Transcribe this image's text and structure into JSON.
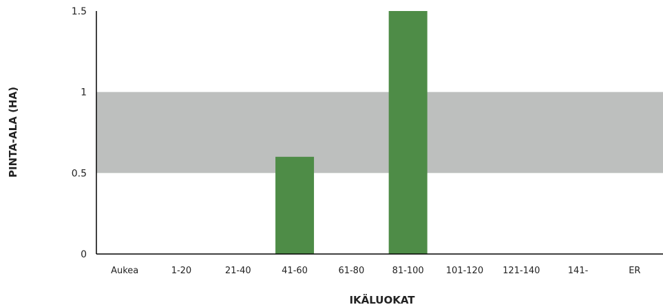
{
  "chart_data": {
    "type": "bar",
    "categories": [
      "Aukea",
      "1-20",
      "21-40",
      "41-60",
      "61-80",
      "81-100",
      "101-120",
      "121-140",
      "141-",
      "ER"
    ],
    "values": [
      0,
      0,
      0,
      0.6,
      0,
      1.5,
      0,
      0,
      0,
      0
    ],
    "xlabel": "IKÄLUOKAT",
    "ylabel": "PINTA-ALA (HA)",
    "ylim": [
      0,
      1.5
    ],
    "yticks": [
      0,
      0.5,
      1,
      1.5
    ],
    "ytick_labels": [
      "0",
      "0.5",
      "1",
      "1.5"
    ],
    "band": [
      0.5,
      1
    ],
    "grid": false,
    "legend": "none",
    "colors": {
      "bar": "#4e8c47",
      "band": "#bdbfbe",
      "axis": "#000000"
    }
  }
}
